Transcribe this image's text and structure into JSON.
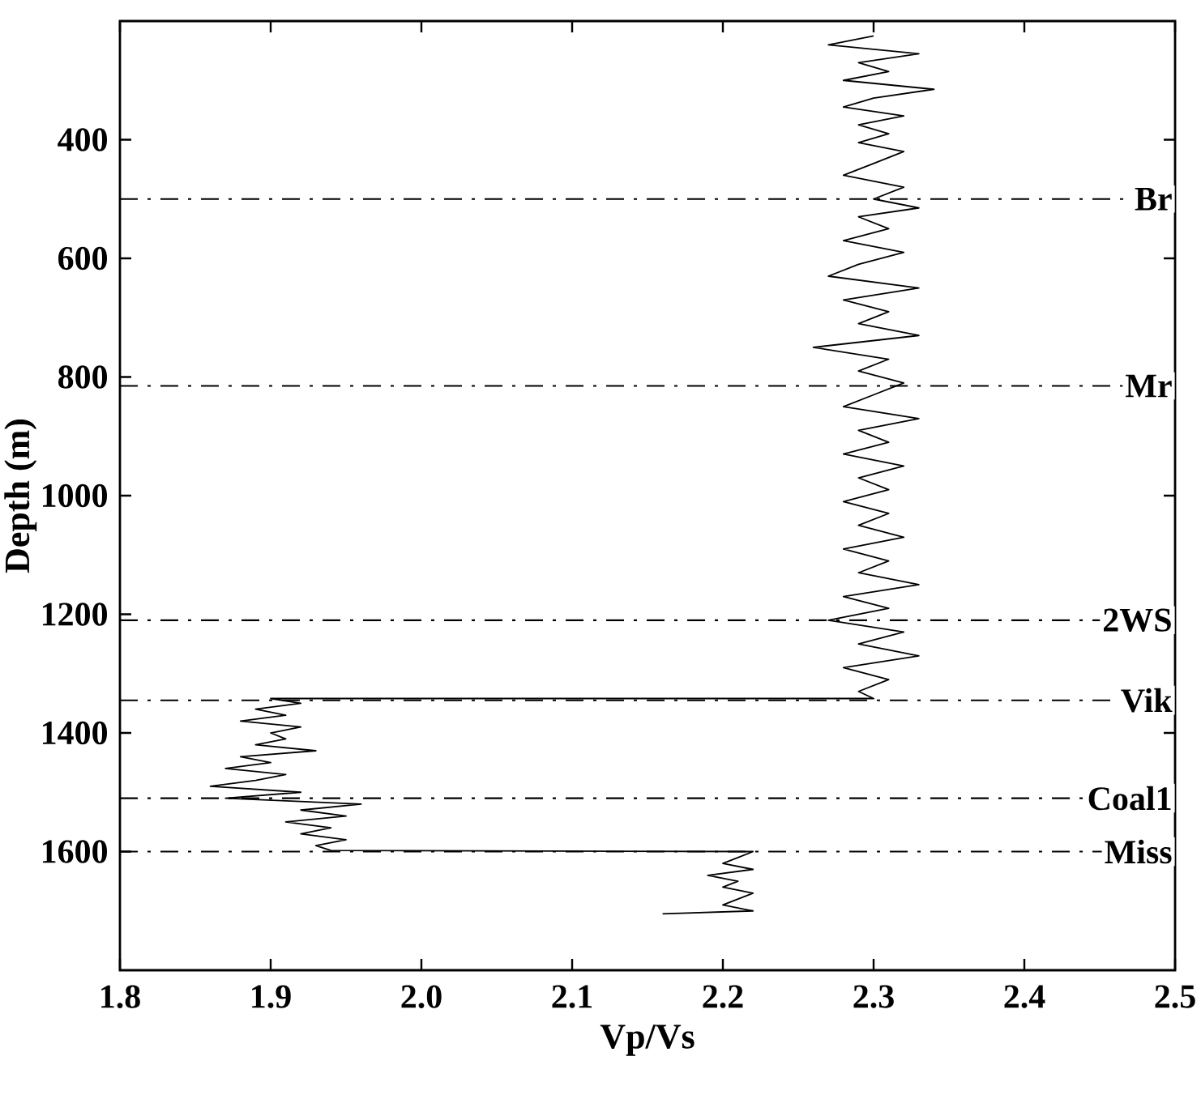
{
  "chart_data": {
    "type": "line",
    "xlabel": "Vp/Vs",
    "ylabel": "Depth (m)",
    "xlim": [
      1.8,
      2.5
    ],
    "ylim": [
      1800,
      200
    ],
    "xticks": [
      1.8,
      1.9,
      {
        "value": 2,
        "label": "2.0"
      },
      2.1,
      2.2,
      2.3,
      2.4,
      2.5
    ],
    "yticks": [
      400,
      600,
      800,
      1000,
      1200,
      1400,
      1600
    ],
    "series": [
      {
        "color": "#000000",
        "x": [
          2.3,
          2.27,
          2.33,
          2.29,
          2.31,
          2.28,
          2.34,
          2.3,
          2.28,
          2.32,
          2.29,
          2.31,
          2.29,
          2.32,
          2.3,
          2.28,
          2.32,
          2.3,
          2.33,
          2.29,
          2.31,
          2.28,
          2.32,
          2.29,
          2.27,
          2.33,
          2.28,
          2.31,
          2.29,
          2.33,
          2.26,
          2.31,
          2.29,
          2.32,
          2.3,
          2.28,
          2.33,
          2.29,
          2.31,
          2.28,
          2.32,
          2.29,
          2.31,
          2.28,
          2.31,
          2.29,
          2.32,
          2.28,
          2.31,
          2.29,
          2.33,
          2.28,
          2.31,
          2.27,
          2.32,
          2.29,
          2.33,
          2.28,
          2.31,
          2.29,
          2.3,
          1.9,
          1.92,
          1.89,
          1.91,
          1.88,
          1.92,
          1.9,
          1.91,
          1.89,
          1.93,
          1.88,
          1.9,
          1.87,
          1.91,
          1.89,
          1.86,
          1.92,
          1.87,
          1.96,
          1.92,
          1.95,
          1.91,
          1.94,
          1.92,
          1.95,
          1.93,
          1.94,
          2.22,
          2.21,
          2.2,
          2.22,
          2.19,
          2.21,
          2.2,
          2.22,
          2.21,
          2.2,
          2.22,
          2.16
        ],
        "values": [
          225,
          240,
          255,
          270,
          285,
          300,
          315,
          330,
          345,
          360,
          375,
          390,
          405,
          420,
          440,
          460,
          480,
          500,
          515,
          530,
          550,
          570,
          590,
          610,
          630,
          650,
          670,
          690,
          710,
          730,
          750,
          770,
          790,
          810,
          830,
          850,
          870,
          890,
          910,
          930,
          950,
          970,
          990,
          1010,
          1030,
          1050,
          1070,
          1090,
          1110,
          1130,
          1150,
          1170,
          1190,
          1210,
          1230,
          1250,
          1270,
          1290,
          1310,
          1330,
          1342,
          1342,
          1350,
          1360,
          1370,
          1380,
          1390,
          1400,
          1410,
          1420,
          1430,
          1440,
          1450,
          1460,
          1470,
          1480,
          1490,
          1500,
          1510,
          1520,
          1530,
          1540,
          1550,
          1560,
          1570,
          1580,
          1590,
          1598,
          1600,
          1610,
          1620,
          1630,
          1640,
          1650,
          1660,
          1670,
          1680,
          1690,
          1700,
          1705
        ]
      }
    ],
    "ref_lines": [
      {
        "axis": "y",
        "value": 500,
        "label": "Br",
        "line_style": "dashdot",
        "color": "#000000"
      },
      {
        "axis": "y",
        "value": 815,
        "label": "Mr",
        "line_style": "dashdot",
        "color": "#000000"
      },
      {
        "axis": "y",
        "value": 1210,
        "label": "2WS",
        "line_style": "dashdot",
        "color": "#000000"
      },
      {
        "axis": "y",
        "value": 1345,
        "label": "Vik",
        "line_style": "dashdot",
        "color": "#000000"
      },
      {
        "axis": "y",
        "value": 1510,
        "label": "Coal1",
        "line_style": "dashdot",
        "color": "#000000"
      },
      {
        "axis": "y",
        "value": 1600,
        "label": "Miss",
        "line_style": "dashdot",
        "color": "#000000"
      }
    ]
  }
}
